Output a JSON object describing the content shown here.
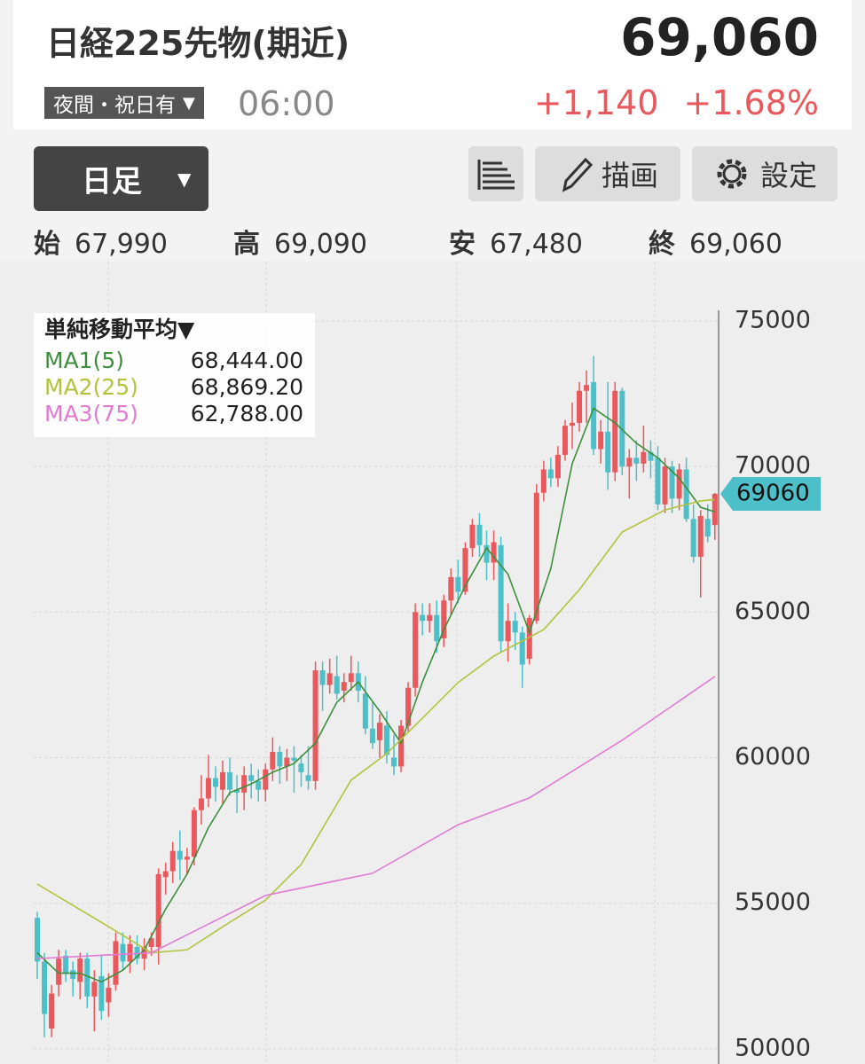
{
  "header": {
    "title": "日経225先物(期近)",
    "price": "69,060",
    "session": "夜間・祝日有",
    "session_arrow": "▼",
    "time": "06:00",
    "change": "+1,140",
    "change_pct": "+1.68%"
  },
  "toolbar": {
    "period": "日足",
    "period_arrow": "▼",
    "draw": "描画",
    "settings": "設定"
  },
  "ohlc_summary": [
    {
      "label": "始",
      "value": "67,990"
    },
    {
      "label": "高",
      "value": "69,090"
    },
    {
      "label": "安",
      "value": "67,480"
    },
    {
      "label": "終",
      "value": "69,060"
    }
  ],
  "chart_data": {
    "type": "candlestick",
    "ylim": [
      49480,
      77040
    ],
    "yticks": [
      50000,
      55000,
      60000,
      65000,
      70000,
      75000
    ],
    "grid": true,
    "up_color": "#e8585c",
    "down_color": "#4cbfc8",
    "last_price": 69060,
    "legend_title": "単純移動平均▼",
    "open": [
      54500,
      53000,
      50700,
      52200,
      53200,
      52700,
      52300,
      53100,
      51800,
      52500,
      51600,
      52200,
      53600,
      53000,
      53500,
      53100,
      53500,
      53500,
      55900,
      56100,
      56800,
      56500,
      56600,
      58200,
      58600,
      59300,
      58900,
      59500,
      58900,
      58800,
      59400,
      59200,
      58900,
      59600,
      60200,
      59700,
      60000,
      59800,
      59400,
      59200,
      63000,
      62500,
      62800,
      62300,
      62600,
      62900,
      62200,
      61000,
      60600,
      61100,
      60000,
      59700,
      61100,
      62400,
      64900,
      64700,
      64900,
      64100,
      65400,
      66200,
      65700,
      67200,
      68000,
      67300,
      66700,
      67300,
      64000,
      64700,
      64300,
      63400,
      64700,
      69100,
      69900,
      69600,
      70400,
      71400,
      71500,
      72600,
      72900,
      70600,
      71200,
      69800,
      72600,
      70000,
      70300,
      70100,
      70500,
      70300,
      68700,
      70000,
      68900,
      69900,
      68200,
      66900,
      68200,
      67990
    ],
    "high": [
      54700,
      53300,
      52200,
      53400,
      53400,
      53000,
      53300,
      53300,
      52700,
      53200,
      52600,
      54000,
      54000,
      53900,
      53900,
      53800,
      54000,
      56200,
      56400,
      57100,
      57500,
      56900,
      58300,
      59400,
      60100,
      59700,
      59900,
      60000,
      59400,
      59700,
      59800,
      59600,
      59800,
      60700,
      60400,
      60300,
      60400,
      60100,
      60400,
      63300,
      63300,
      63400,
      63500,
      62900,
      63500,
      63300,
      62800,
      61900,
      61500,
      61600,
      60800,
      61300,
      62600,
      65300,
      65300,
      65300,
      65400,
      65600,
      66500,
      66800,
      67400,
      68200,
      68400,
      67800,
      67800,
      67600,
      65300,
      65000,
      64500,
      64900,
      69400,
      70200,
      70300,
      70700,
      71600,
      72200,
      72900,
      73300,
      73800,
      71600,
      72900,
      72900,
      72700,
      70600,
      70900,
      71400,
      70900,
      70700,
      70300,
      70200,
      70100,
      70300,
      68700,
      68500,
      68700,
      69090
    ],
    "low": [
      52400,
      50400,
      50400,
      51800,
      52300,
      51800,
      51700,
      51400,
      50600,
      51000,
      51100,
      52000,
      52700,
      52600,
      52900,
      52700,
      53200,
      52900,
      55300,
      55700,
      55800,
      56000,
      56300,
      57700,
      58300,
      58500,
      58400,
      58700,
      58100,
      58200,
      58600,
      58500,
      58500,
      59200,
      59100,
      59200,
      58800,
      59000,
      58900,
      58900,
      61600,
      62200,
      62000,
      61900,
      62300,
      61900,
      60800,
      60300,
      60000,
      59800,
      59400,
      59500,
      60900,
      62100,
      64200,
      64300,
      63600,
      63800,
      64900,
      65300,
      65600,
      66900,
      66900,
      66100,
      66100,
      63600,
      63300,
      63700,
      62400,
      63200,
      64600,
      68800,
      69300,
      69300,
      70200,
      70600,
      71200,
      71500,
      70400,
      70100,
      69200,
      69500,
      69700,
      68900,
      69500,
      69800,
      69600,
      68500,
      68400,
      68400,
      68500,
      68100,
      66700,
      65500,
      67400,
      67480
    ],
    "close": [
      53000,
      51200,
      51900,
      53100,
      52600,
      52400,
      53100,
      51800,
      52300,
      51300,
      52100,
      53700,
      53000,
      53600,
      53100,
      53500,
      53800,
      56000,
      56100,
      56800,
      56500,
      56600,
      58200,
      58600,
      59300,
      59000,
      59500,
      58900,
      58800,
      59400,
      59200,
      58900,
      59600,
      60200,
      59700,
      60000,
      59900,
      59500,
      59200,
      63000,
      62500,
      62900,
      62200,
      62600,
      62900,
      62300,
      61000,
      60500,
      61200,
      60100,
      59700,
      61100,
      62400,
      65000,
      64700,
      64900,
      64000,
      65400,
      66200,
      65700,
      67200,
      68000,
      67300,
      66700,
      67400,
      64000,
      64700,
      64300,
      63200,
      64800,
      69100,
      69900,
      69600,
      70400,
      71400,
      71500,
      72600,
      72800,
      70600,
      71200,
      69800,
      72600,
      70000,
      70300,
      70100,
      70500,
      70200,
      68700,
      70000,
      68900,
      69900,
      68200,
      66900,
      68300,
      67600,
      69060
    ],
    "series": [
      {
        "name": "MA1(5)",
        "color": "#3d8f3d",
        "legend_value": "68,444.00",
        "x": [
          0,
          3,
          6,
          9,
          12,
          15,
          18,
          21,
          24,
          27,
          30,
          33,
          36,
          39,
          42,
          45,
          48,
          51,
          54,
          57,
          60,
          63,
          66,
          69,
          72,
          75,
          78,
          81,
          84,
          87,
          90,
          93,
          95
        ],
        "values": [
          53300,
          52600,
          52600,
          52300,
          52700,
          53400,
          54800,
          56000,
          57600,
          58800,
          59100,
          59500,
          59800,
          60500,
          61900,
          62600,
          61600,
          60500,
          62600,
          64400,
          65900,
          67200,
          66300,
          64300,
          66500,
          70100,
          72000,
          71500,
          70800,
          70300,
          69600,
          68600,
          68444
        ]
      },
      {
        "name": "MA2(25)",
        "color": "#b2c43c",
        "legend_value": "68,869.20",
        "x": [
          0,
          11,
          16,
          21,
          27,
          32,
          37,
          44,
          49,
          54,
          59,
          64,
          71,
          76,
          82,
          88,
          93,
          95
        ],
        "values": [
          55660,
          54050,
          53300,
          53400,
          54350,
          55110,
          56330,
          59230,
          60140,
          61360,
          62580,
          63490,
          64400,
          65770,
          67750,
          68510,
          68820,
          68869
        ]
      },
      {
        "name": "MA3(75)",
        "color": "#e07ad2",
        "legend_value": "62,788.00",
        "x": [
          0,
          8,
          16,
          32,
          47,
          59,
          69,
          82,
          95
        ],
        "values": [
          53100,
          53200,
          53300,
          55270,
          56030,
          57700,
          58620,
          60600,
          62788
        ]
      }
    ]
  }
}
